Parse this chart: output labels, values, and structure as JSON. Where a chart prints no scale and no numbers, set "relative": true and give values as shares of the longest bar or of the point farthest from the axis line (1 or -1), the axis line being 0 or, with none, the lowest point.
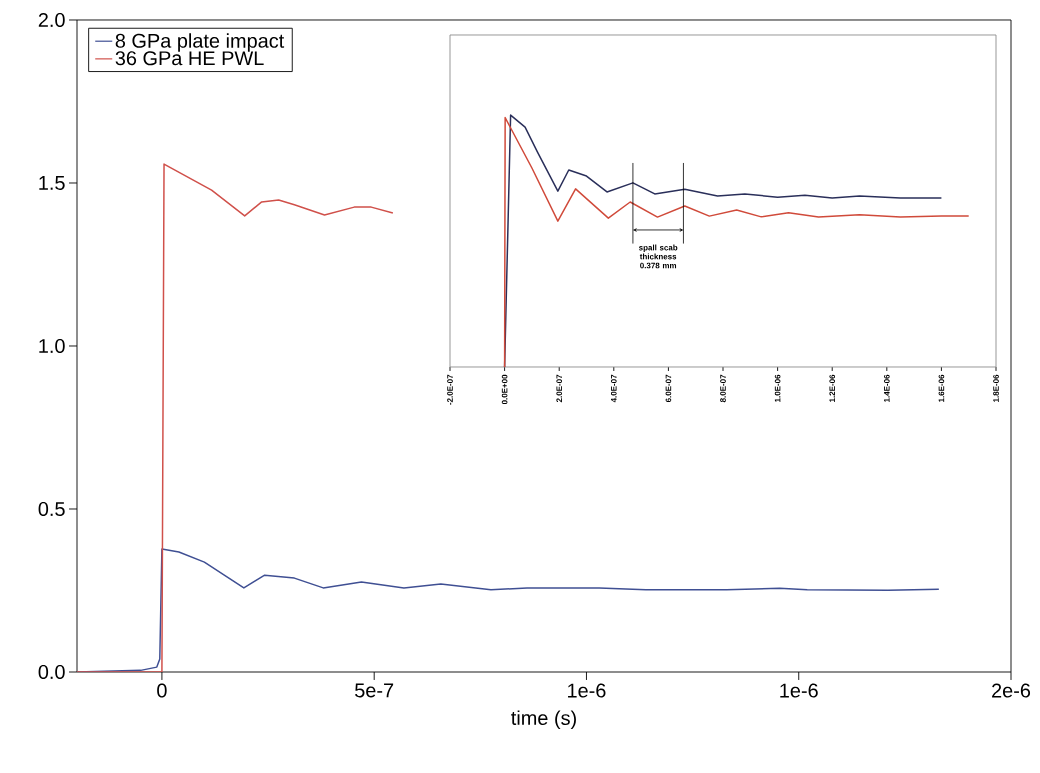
{
  "chart_data": [
    {
      "type": "line",
      "xlabel": "time (s)",
      "legend": "top left",
      "xlim": [
        -2e-07,
        2e-06
      ],
      "ylim": [
        0,
        2
      ],
      "xticks": [
        {
          "value": 0,
          "label": "0"
        },
        {
          "value": 5e-07,
          "label": "5e-7"
        },
        {
          "value": 1e-06,
          "label": "1e-6"
        },
        {
          "value": 1.5e-06,
          "label": "1e-6"
        },
        {
          "value": 2e-06,
          "label": "2e-6"
        }
      ],
      "yticks": [
        {
          "value": 0,
          "label": "0.0"
        },
        {
          "value": 0.5,
          "label": "0.5"
        },
        {
          "value": 1,
          "label": "1.0"
        },
        {
          "value": 1.5,
          "label": "1.5"
        },
        {
          "value": 2,
          "label": "2.0"
        }
      ],
      "series": [
        {
          "name": "8 GPa plate impact",
          "color": "#3f4f93",
          "x": [
            -2e-07,
            -5e-08,
            -1.2e-08,
            -5e-09,
            0,
            4e-08,
            1e-07,
            1.93e-07,
            2.42e-07,
            3.12e-07,
            3.8e-07,
            4.7e-07,
            5.7e-07,
            6.57e-07,
            7.75e-07,
            8.6e-07,
            1.03e-06,
            1.14e-06,
            1.33e-06,
            1.455e-06,
            1.52e-06,
            1.71e-06,
            1.83e-06
          ],
          "values": [
            0,
            0.005,
            0.015,
            0.04,
            0.377,
            0.368,
            0.337,
            0.258,
            0.297,
            0.288,
            0.258,
            0.276,
            0.258,
            0.27,
            0.252,
            0.258,
            0.258,
            0.252,
            0.252,
            0.257,
            0.252,
            0.251,
            0.254
          ]
        },
        {
          "name": "36 GPa HE PWL",
          "color": "#d0504a",
          "x": [
            -2e-07,
            0,
            5e-09,
            1.17e-07,
            1.95e-07,
            2.35e-07,
            2.75e-07,
            3.12e-07,
            3.83e-07,
            4.53e-07,
            4.93e-07,
            5.44e-07
          ],
          "values": [
            0,
            0,
            1.558,
            1.478,
            1.399,
            1.442,
            1.448,
            1.433,
            1.402,
            1.426,
            1.426,
            1.408
          ]
        }
      ]
    },
    {
      "type": "line",
      "relative": true,
      "tick_labels": "x",
      "xlim": [
        -2e-07,
        1.8e-06
      ],
      "xticks": [
        {
          "value": -2e-07,
          "label": "-2.0E-07"
        },
        {
          "value": 0,
          "label": "0.0E+00"
        },
        {
          "value": 2e-07,
          "label": "2.0E-07"
        },
        {
          "value": 4e-07,
          "label": "4.0E-07"
        },
        {
          "value": 6e-07,
          "label": "6.0E-07"
        },
        {
          "value": 8e-07,
          "label": "8.0E-07"
        },
        {
          "value": 1e-06,
          "label": "1.0E-06"
        },
        {
          "value": 1.2e-06,
          "label": "1.2E-06"
        },
        {
          "value": 1.4e-06,
          "label": "1.4E-06"
        },
        {
          "value": 1.6e-06,
          "label": "1.6E-06"
        },
        {
          "value": 1.8e-06,
          "label": "1.8E-06"
        }
      ],
      "ref_lines": [
        {
          "axis": "x",
          "value": 4.7e-07
        },
        {
          "axis": "x",
          "value": 6.55e-07
        }
      ],
      "annotations": [
        "spall scab thickness 0.378 mm"
      ],
      "series": [
        {
          "color": "#2a2f5a",
          "x": [
            0,
            2.2e-08,
            7.5e-08,
            1.2e-07,
            1.95e-07,
            2.35e-07,
            3e-07,
            3.75e-07,
            4.7e-07,
            5.5e-07,
            6.6e-07,
            7.8e-07,
            8.8e-07,
            1e-06,
            1.1e-06,
            1.2e-06,
            1.3e-06,
            1.45e-06,
            1.6e-06
          ],
          "values": [
            0,
            1,
            0.952,
            0.854,
            0.698,
            0.782,
            0.758,
            0.695,
            0.731,
            0.687,
            0.706,
            0.679,
            0.687,
            0.674,
            0.682,
            0.671,
            0.679,
            0.671,
            0.671
          ]
        },
        {
          "color": "#d04a3a",
          "x": [
            0,
            2e-09,
            1e-07,
            1.95e-07,
            2.6e-07,
            3.8e-07,
            4.6e-07,
            5.6e-07,
            6.6e-07,
            7.5e-07,
            8.5e-07,
            9.4e-07,
            1.04e-06,
            1.15e-06,
            1.3e-06,
            1.45e-06,
            1.6e-06,
            1.7e-06
          ],
          "values": [
            0,
            0.99,
            0.79,
            0.579,
            0.707,
            0.591,
            0.655,
            0.595,
            0.639,
            0.599,
            0.623,
            0.596,
            0.612,
            0.595,
            0.604,
            0.595,
            0.599,
            0.599
          ]
        }
      ]
    }
  ]
}
